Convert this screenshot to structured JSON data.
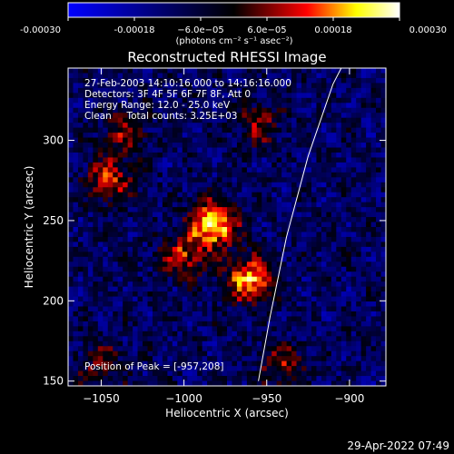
{
  "chart_data": {
    "type": "heatmap",
    "title": "Reconstructed RHESSI Image",
    "xlabel": "Heliocentric X (arcsec)",
    "ylabel": "Heliocentric Y (arcsec)",
    "xlim": [
      -1070,
      -878
    ],
    "ylim": [
      147,
      345
    ],
    "x_ticks": [
      -1050,
      -1000,
      -950,
      -900
    ],
    "x_tick_labels": [
      "−1050",
      "−1000",
      "−950",
      "−900"
    ],
    "y_ticks": [
      150,
      200,
      250,
      300
    ],
    "y_tick_labels": [
      "150",
      "200",
      "250",
      "300"
    ],
    "colorbar": {
      "range": [
        -0.0003,
        0.0003
      ],
      "ticks": [
        -0.0003,
        -0.00018,
        -6e-05,
        6e-05,
        0.00018,
        0.0003
      ],
      "tick_labels": [
        "-0.00030",
        "-0.00018",
        "−6.0e−05",
        "6.0e−05",
        "0.00018",
        "0.00030"
      ],
      "unit_label": "(photons cm⁻² s⁻¹ asec⁻²)",
      "colormap": [
        "#0000ff",
        "#000000",
        "#ff0000",
        "#ffff00",
        "#ffffff"
      ]
    },
    "annotations": [
      "27-Feb-2003 14:10:16.000 to 14:16:16.000",
      "Detectors: 3F 4F 5F 6F 7F 8F, Att 0",
      "Energy Range: 12.0 - 25.0 keV",
      "Clean     Total counts: 3.25E+03"
    ],
    "peak_label": "Position of Peak = [-957,208]",
    "peak_position": [
      -957,
      208
    ],
    "limb_curve": [
      [
        -955,
        150
      ],
      [
        -948,
        190
      ],
      [
        -938,
        240
      ],
      [
        -925,
        290
      ],
      [
        -910,
        335
      ],
      [
        -905,
        345
      ]
    ],
    "sources": [
      {
        "x": -982,
        "y": 248,
        "amplitude": 1.0
      },
      {
        "x": -960,
        "y": 213,
        "amplitude": 0.85
      },
      {
        "x": -1000,
        "y": 228,
        "amplitude": 0.55
      },
      {
        "x": -1045,
        "y": 275,
        "amplitude": 0.6
      },
      {
        "x": -1035,
        "y": 305,
        "amplitude": 0.45
      },
      {
        "x": -955,
        "y": 310,
        "amplitude": 0.4
      },
      {
        "x": -940,
        "y": 160,
        "amplitude": 0.45
      },
      {
        "x": -1050,
        "y": 160,
        "amplitude": 0.35
      }
    ]
  },
  "timestamp": "29-Apr-2022 07:49"
}
